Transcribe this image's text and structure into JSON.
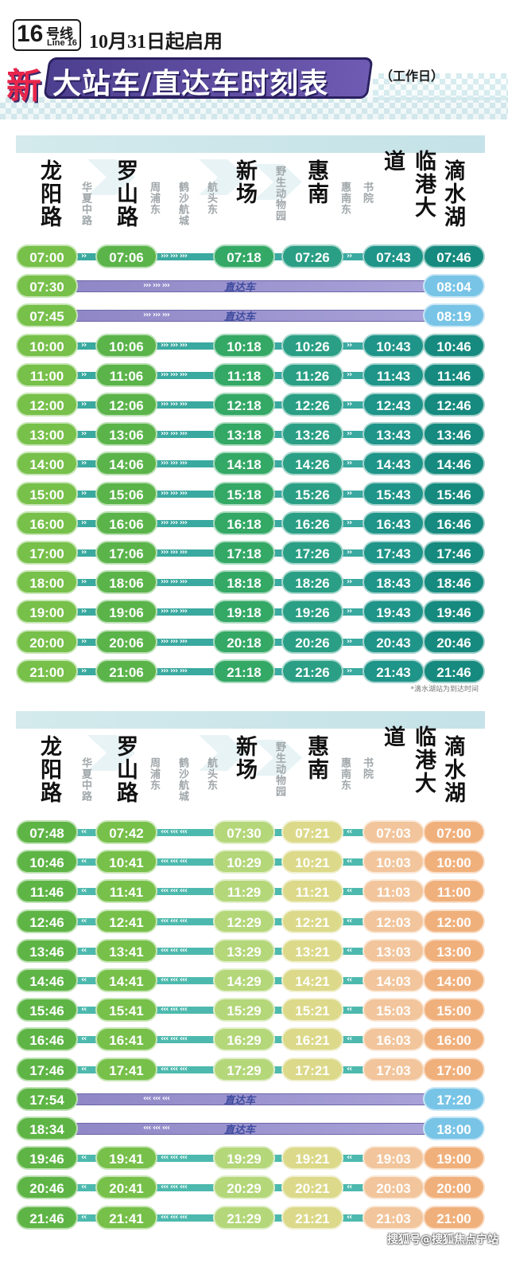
{
  "header": {
    "line_number": "16",
    "line_zh": "号线",
    "line_en": "Line 16",
    "start_date": "10月31日起启用",
    "new_mark": "新",
    "title": "大站车/直达车时刻表",
    "day_type": "（工作日）"
  },
  "stations": {
    "major": [
      "龙阳路",
      "罗山路",
      "新场",
      "惠南",
      "临港大道",
      "滴水湖"
    ],
    "minor": [
      "华夏中路",
      "周浦东",
      "鹤沙航城",
      "航头东",
      "野生动物园",
      "惠南东",
      "书院"
    ]
  },
  "express_label": "直达车",
  "outbound": {
    "rows": [
      {
        "type": "stop",
        "times": [
          "07:00",
          "07:06",
          "07:18",
          "07:26",
          "07:43",
          "07:46"
        ]
      },
      {
        "type": "express",
        "times": [
          "07:30",
          "08:04"
        ]
      },
      {
        "type": "express",
        "times": [
          "07:45",
          "08:19"
        ]
      },
      {
        "type": "stop",
        "times": [
          "10:00",
          "10:06",
          "10:18",
          "10:26",
          "10:43",
          "10:46"
        ]
      },
      {
        "type": "stop",
        "times": [
          "11:00",
          "11:06",
          "11:18",
          "11:26",
          "11:43",
          "11:46"
        ]
      },
      {
        "type": "stop",
        "times": [
          "12:00",
          "12:06",
          "12:18",
          "12:26",
          "12:43",
          "12:46"
        ]
      },
      {
        "type": "stop",
        "times": [
          "13:00",
          "13:06",
          "13:18",
          "13:26",
          "13:43",
          "13:46"
        ]
      },
      {
        "type": "stop",
        "times": [
          "14:00",
          "14:06",
          "14:18",
          "14:26",
          "14:43",
          "14:46"
        ]
      },
      {
        "type": "stop",
        "times": [
          "15:00",
          "15:06",
          "15:18",
          "15:26",
          "15:43",
          "15:46"
        ]
      },
      {
        "type": "stop",
        "times": [
          "16:00",
          "16:06",
          "16:18",
          "16:26",
          "16:43",
          "16:46"
        ]
      },
      {
        "type": "stop",
        "times": [
          "17:00",
          "17:06",
          "17:18",
          "17:26",
          "17:43",
          "17:46"
        ]
      },
      {
        "type": "stop",
        "times": [
          "18:00",
          "18:06",
          "18:18",
          "18:26",
          "18:43",
          "18:46"
        ]
      },
      {
        "type": "stop",
        "times": [
          "19:00",
          "19:06",
          "19:18",
          "19:26",
          "19:43",
          "19:46"
        ]
      },
      {
        "type": "stop",
        "times": [
          "20:00",
          "20:06",
          "20:18",
          "20:26",
          "20:43",
          "20:46"
        ]
      },
      {
        "type": "stop",
        "times": [
          "21:00",
          "21:06",
          "21:18",
          "21:26",
          "21:43",
          "21:46"
        ]
      }
    ],
    "note": "*滴水湖站为到达时间"
  },
  "inbound": {
    "rows": [
      {
        "type": "stop",
        "times": [
          "07:48",
          "07:42",
          "07:30",
          "07:21",
          "07:03",
          "07:00"
        ]
      },
      {
        "type": "stop",
        "times": [
          "10:46",
          "10:41",
          "10:29",
          "10:21",
          "10:03",
          "10:00"
        ]
      },
      {
        "type": "stop",
        "times": [
          "11:46",
          "11:41",
          "11:29",
          "11:21",
          "11:03",
          "11:00"
        ]
      },
      {
        "type": "stop",
        "times": [
          "12:46",
          "12:41",
          "12:29",
          "12:21",
          "12:03",
          "12:00"
        ]
      },
      {
        "type": "stop",
        "times": [
          "13:46",
          "13:41",
          "13:29",
          "13:21",
          "13:03",
          "13:00"
        ]
      },
      {
        "type": "stop",
        "times": [
          "14:46",
          "14:41",
          "14:29",
          "14:21",
          "14:03",
          "14:00"
        ]
      },
      {
        "type": "stop",
        "times": [
          "15:46",
          "15:41",
          "15:29",
          "15:21",
          "15:03",
          "15:00"
        ]
      },
      {
        "type": "stop",
        "times": [
          "16:46",
          "16:41",
          "16:29",
          "16:21",
          "16:03",
          "16:00"
        ]
      },
      {
        "type": "stop",
        "times": [
          "17:46",
          "17:41",
          "17:29",
          "17:21",
          "17:03",
          "17:00"
        ]
      },
      {
        "type": "express",
        "times": [
          "17:54",
          "17:20"
        ]
      },
      {
        "type": "express",
        "times": [
          "18:34",
          "18:00"
        ]
      },
      {
        "type": "stop",
        "times": [
          "19:46",
          "19:41",
          "19:29",
          "19:21",
          "19:03",
          "19:00"
        ]
      },
      {
        "type": "stop",
        "times": [
          "20:46",
          "20:41",
          "20:29",
          "20:21",
          "20:03",
          "20:00"
        ]
      },
      {
        "type": "stop",
        "times": [
          "21:46",
          "21:41",
          "21:29",
          "21:21",
          "21:03",
          "21:00"
        ]
      }
    ]
  },
  "colors": {
    "out_pills": [
      "#77c04a",
      "#5bb44a",
      "#34a865",
      "#2a9f85",
      "#1f9489",
      "#168a7e"
    ],
    "in_pills": [
      "#5eb545",
      "#77c04a",
      "#b4d77a",
      "#dcd98a",
      "#f2c59c",
      "#f0b07c"
    ],
    "express_end_in": "#78c4e6",
    "track_out": "#3aa9a0",
    "track_in": "#4db9ae"
  },
  "watermark": "搜狐号@搜狐焦点宁站"
}
